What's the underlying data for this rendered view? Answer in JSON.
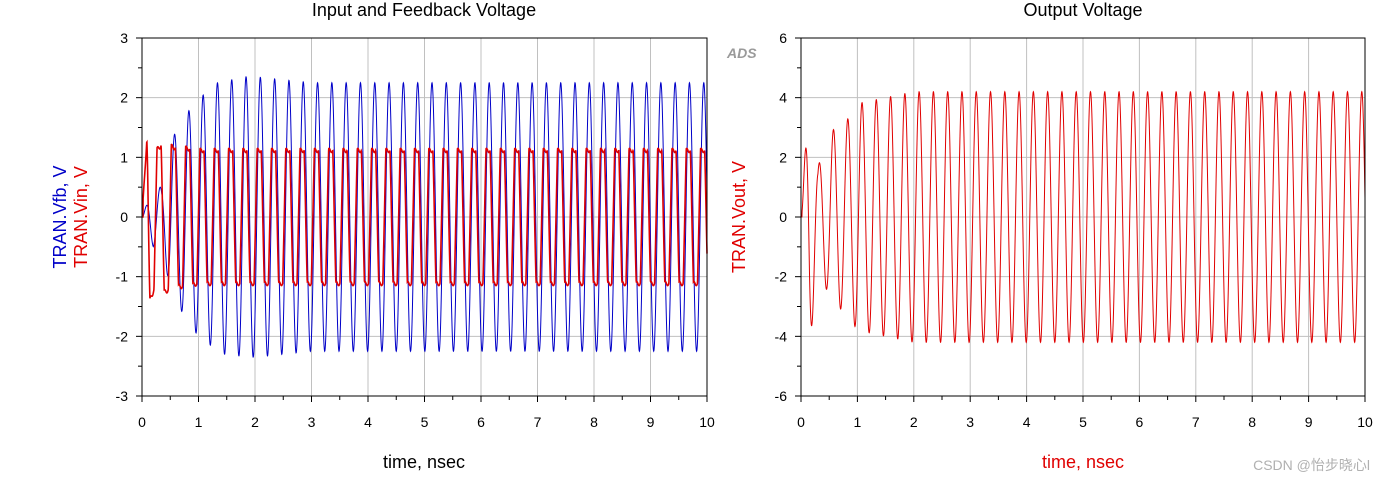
{
  "badge": "ADS",
  "watermark": "CSDN @怡步晓心l",
  "colors": {
    "blue": "#0000c8",
    "red": "#e00000",
    "grid": "#c0c0c0",
    "frame": "#000000"
  },
  "chart_data": [
    {
      "type": "line",
      "title": "Input and Feedback Voltage",
      "xlabel": "time, nsec",
      "ylabel_lines": [
        "TRAN.Vfb, V",
        "TRAN.Vin, V"
      ],
      "xlim": [
        0,
        10
      ],
      "ylim": [
        -3,
        3
      ],
      "xticks": [
        "0",
        "1",
        "2",
        "3",
        "4",
        "5",
        "6",
        "7",
        "8",
        "9",
        "10"
      ],
      "yticks": [
        "3",
        "2",
        "1",
        "0",
        "-1",
        "-2",
        "-3"
      ],
      "grid": true,
      "series": [
        {
          "name": "TRAN.Vfb",
          "color": "#0000c8",
          "frequency_ghz": 3.95,
          "steady_amplitude": 2.25,
          "points": [
            [
              0,
              0
            ],
            [
              0.2,
              -0.5
            ],
            [
              0.35,
              0.5
            ],
            [
              0.52,
              -1.3
            ],
            [
              0.65,
              1.5
            ],
            [
              0.78,
              -1.7
            ],
            [
              0.9,
              1.9
            ],
            [
              1.03,
              -2.0
            ],
            [
              1.15,
              2.1
            ],
            [
              1.4,
              -2.3
            ],
            [
              1.6,
              2.3
            ],
            [
              1.8,
              -2.35
            ],
            [
              2.0,
              2.35
            ],
            [
              2.5,
              2.3
            ],
            [
              3.0,
              -2.25
            ],
            [
              4.0,
              2.25
            ],
            [
              10,
              2.25
            ]
          ]
        },
        {
          "name": "TRAN.Vin",
          "color": "#e00000",
          "frequency_ghz": 3.95,
          "steady_amplitude": 1.15,
          "points": [
            [
              0,
              0
            ],
            [
              0.1,
              1.55
            ],
            [
              0.25,
              -1.15
            ],
            [
              0.4,
              1.3
            ],
            [
              0.55,
              -1.2
            ],
            [
              0.7,
              1.2
            ],
            [
              1.0,
              -1.15
            ],
            [
              2.0,
              1.15
            ],
            [
              10,
              1.15
            ]
          ]
        }
      ]
    },
    {
      "type": "line",
      "title": "Output Voltage",
      "xlabel": "time, nsec",
      "ylabel_lines": [
        "TRAN.Vout, V"
      ],
      "xlim": [
        0,
        10
      ],
      "ylim": [
        -6,
        6
      ],
      "xticks": [
        "0",
        "1",
        "2",
        "3",
        "4",
        "5",
        "6",
        "7",
        "8",
        "9",
        "10"
      ],
      "yticks": [
        "6",
        "4",
        "2",
        "0",
        "-2",
        "-4",
        "-6"
      ],
      "grid": true,
      "series": [
        {
          "name": "TRAN.Vout",
          "color": "#e00000",
          "frequency_ghz": 3.95,
          "steady_amplitude": 4.2,
          "points": [
            [
              0,
              0
            ],
            [
              0.15,
              -4.4
            ],
            [
              0.3,
              1.7
            ],
            [
              0.55,
              -2.9
            ],
            [
              0.8,
              3.2
            ],
            [
              1.0,
              -3.8
            ],
            [
              1.5,
              4.0
            ],
            [
              2.0,
              -4.2
            ],
            [
              3.0,
              4.2
            ],
            [
              10,
              4.2
            ]
          ]
        }
      ]
    }
  ]
}
